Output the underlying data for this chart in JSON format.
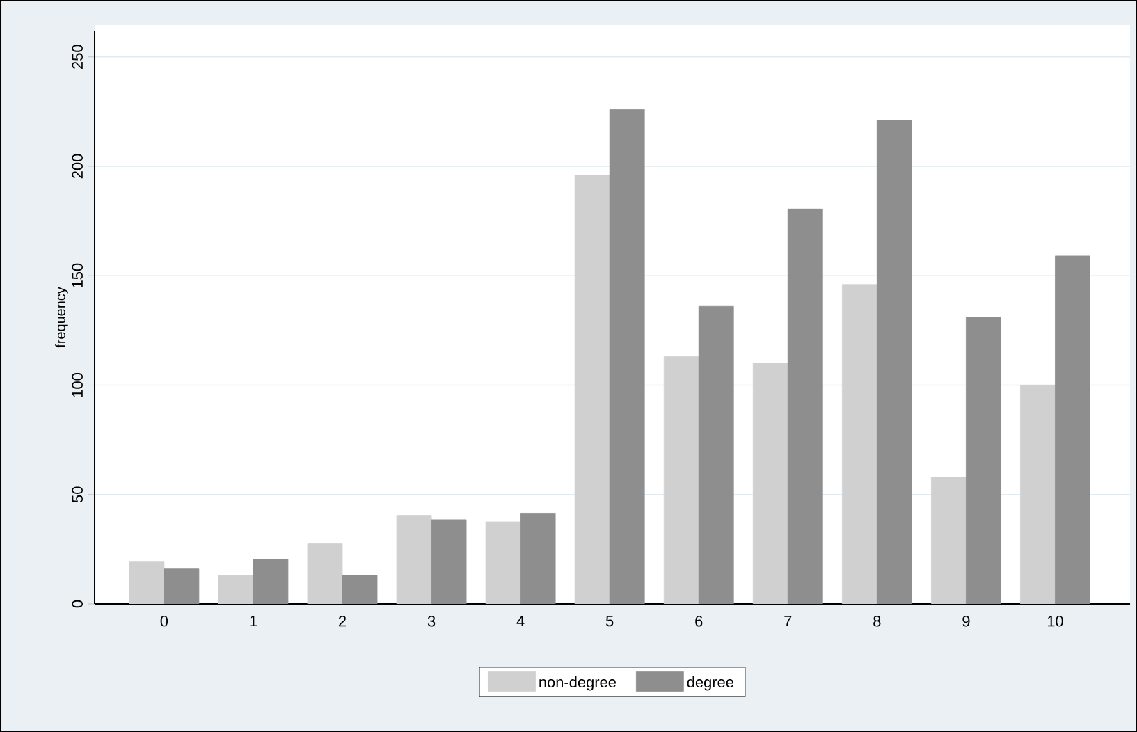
{
  "chart_data": {
    "type": "bar",
    "ylabel": "frequency",
    "categories": [
      "0",
      "1",
      "2",
      "3",
      "4",
      "5",
      "6",
      "7",
      "8",
      "9",
      "10"
    ],
    "series": [
      {
        "name": "non-degree",
        "color": "#d0d0d0",
        "values": [
          19.5,
          13,
          27.5,
          40.5,
          37.5,
          196,
          113,
          110,
          146,
          58,
          100
        ]
      },
      {
        "name": "degree",
        "color": "#8e8e8e",
        "values": [
          16,
          20.5,
          13,
          38.5,
          41.5,
          226,
          136,
          180.5,
          221,
          131,
          159
        ]
      }
    ],
    "ylim": [
      0,
      262
    ],
    "yticks": [
      0,
      50,
      100,
      150,
      200,
      250
    ],
    "grid": "y",
    "legend": "bottom"
  }
}
